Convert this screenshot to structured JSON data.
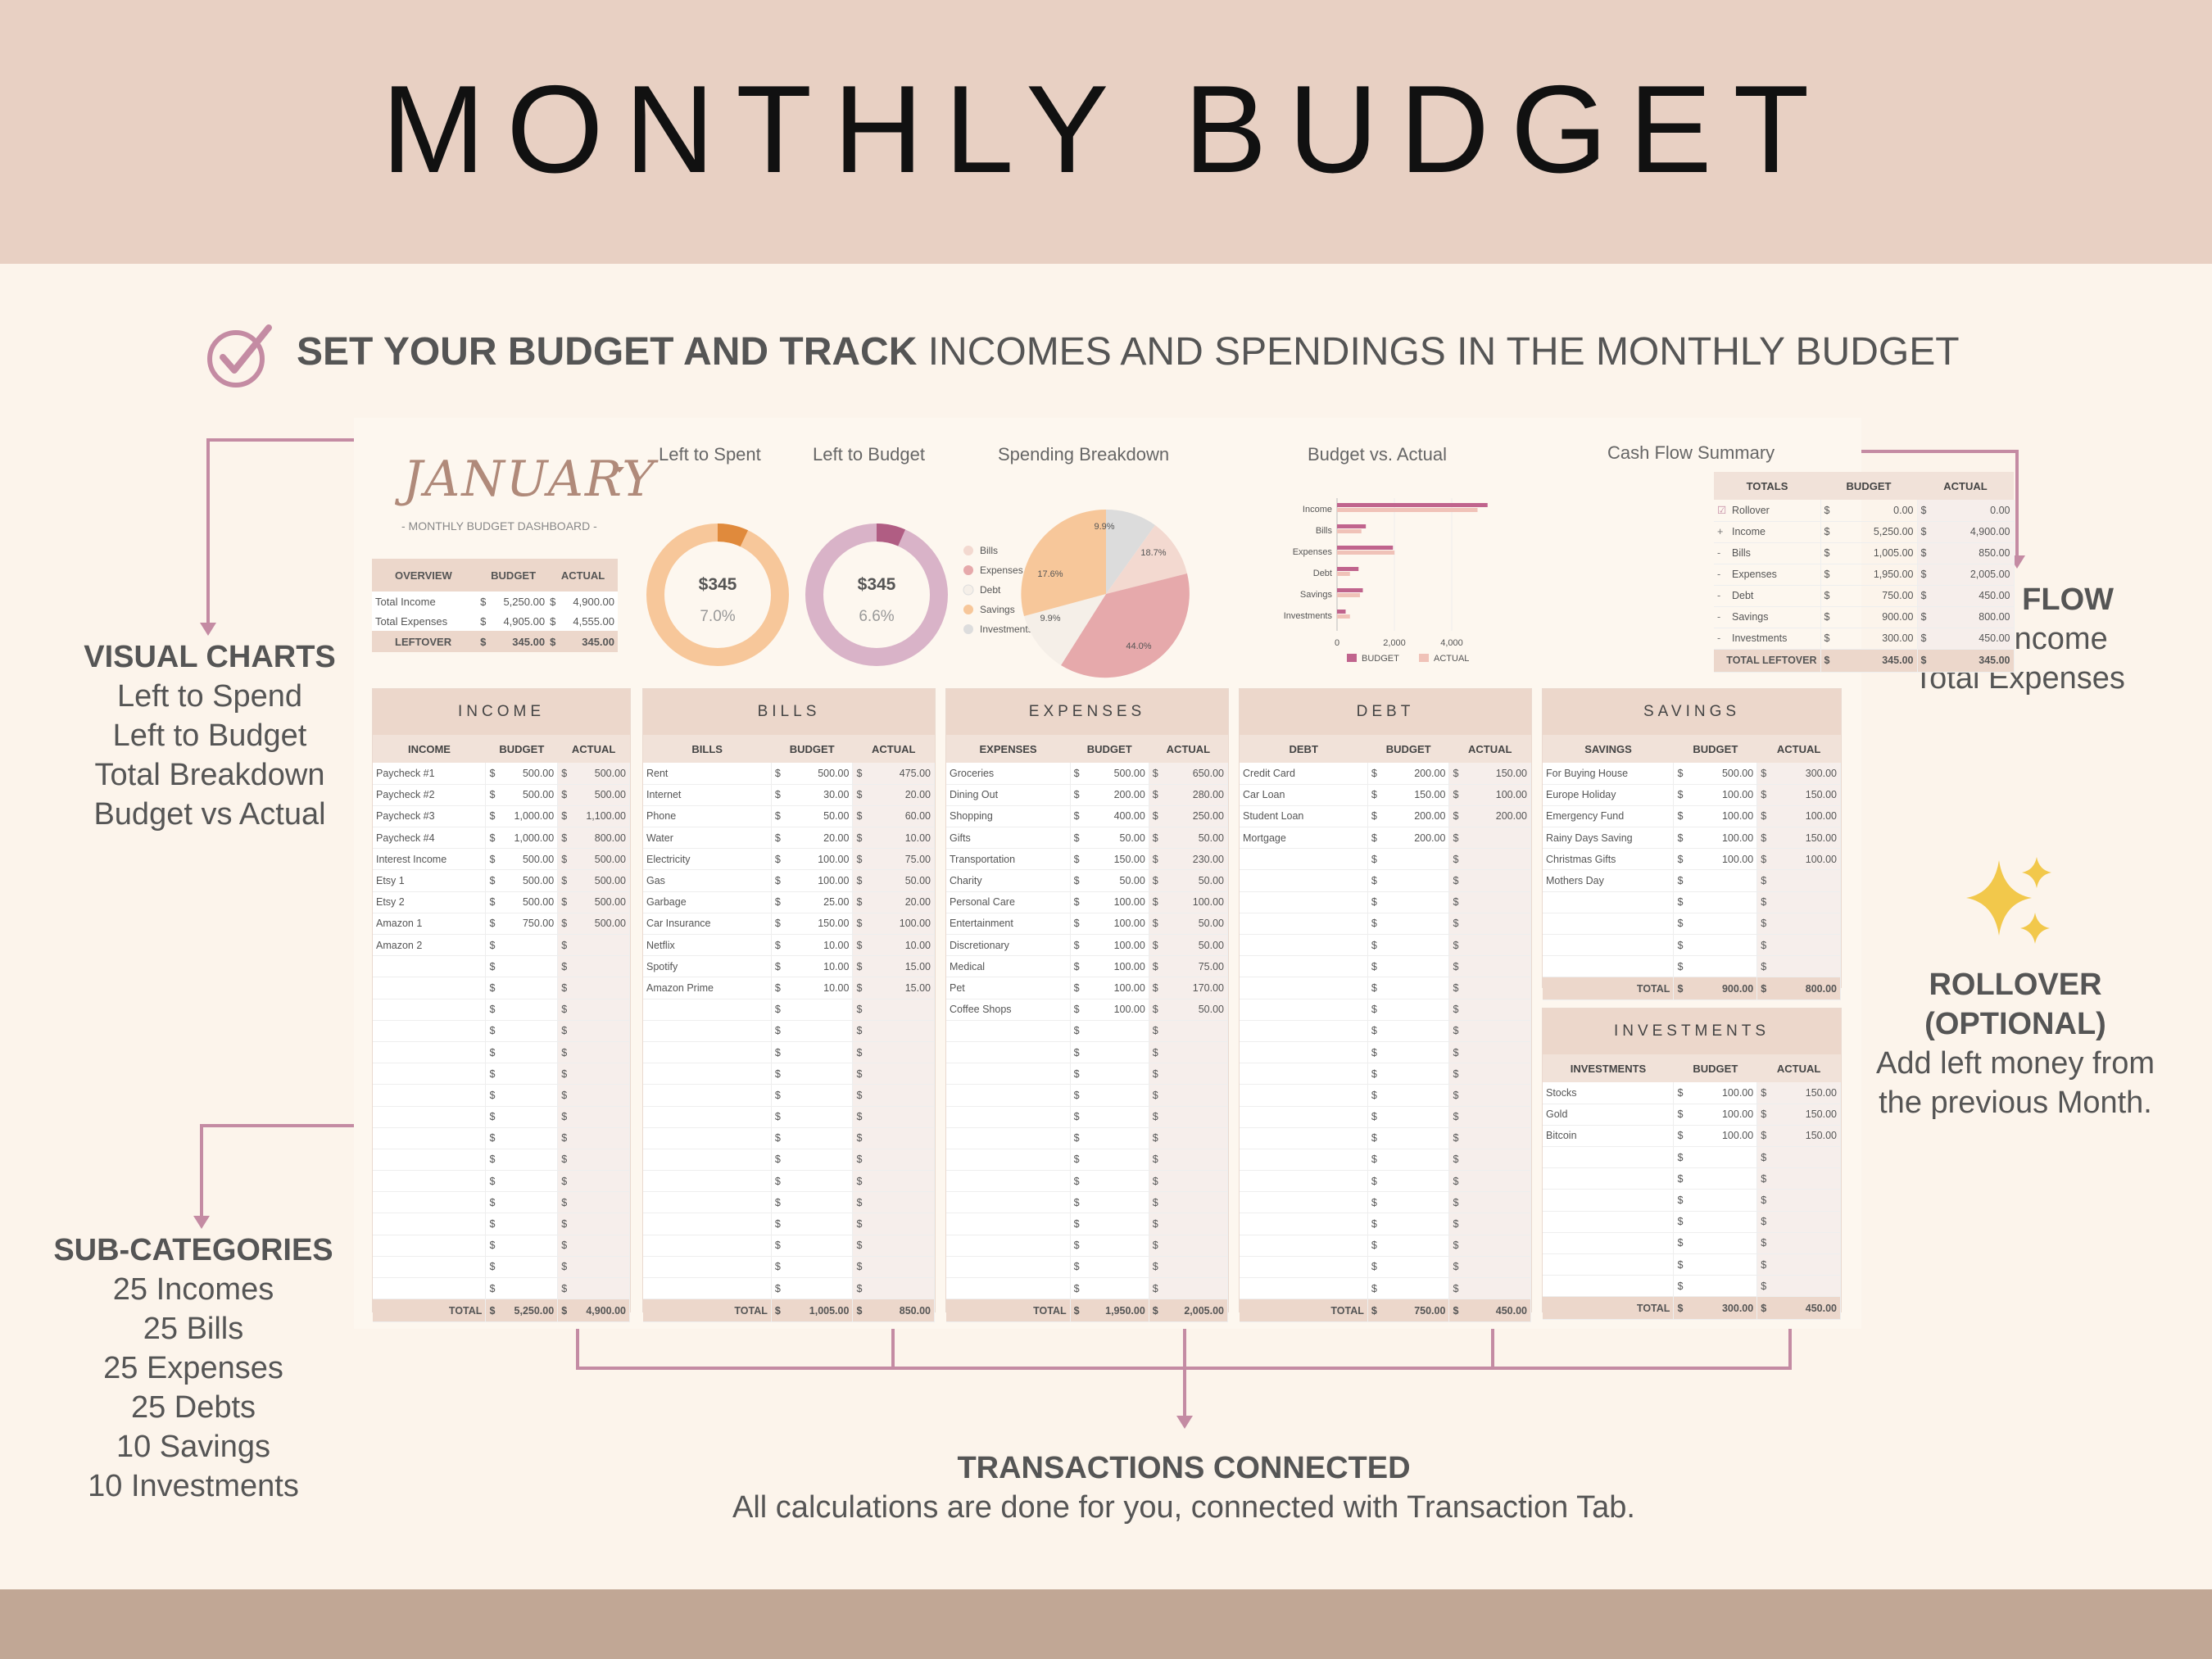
{
  "title": "MONTHLY BUDGET",
  "headline": {
    "bold": "SET YOUR BUDGET AND TRACK",
    "rest": " INCOMES AND SPENDINGS IN THE MONTHLY BUDGET"
  },
  "annotations": {
    "visual_charts": {
      "heading": "VISUAL CHARTS",
      "lines": [
        "Left to Spend",
        "Left to Budget",
        "Total Breakdown",
        "Budget vs Actual"
      ]
    },
    "cash_flow": {
      "heading": "CASH FLOW",
      "lines": [
        "Total Income",
        "Total Expenses"
      ]
    },
    "rollover": {
      "heading1": "ROLLOVER",
      "heading2": "(OPTIONAL)",
      "lines": [
        "Add left money from",
        "the previous Month."
      ]
    },
    "sub_categories": {
      "heading": "SUB-CATEGORIES",
      "lines": [
        "25 Incomes",
        "25 Bills",
        "25 Expenses",
        "25 Debts",
        "10 Savings",
        "10 Investments"
      ]
    },
    "transactions": {
      "heading": "TRANSACTIONS CONNECTED",
      "line": "All calculations are done for you, connected with Transaction Tab."
    }
  },
  "dashboard": {
    "month": "JANUARY",
    "subtitle": "- MONTHLY BUDGET DASHBOARD -",
    "overview": {
      "headers": [
        "OVERVIEW",
        "BUDGET",
        "ACTUAL"
      ],
      "rows": [
        [
          "Total Income",
          "5,250.00",
          "4,900.00"
        ],
        [
          "Total Expenses",
          "4,905.00",
          "4,555.00"
        ]
      ],
      "total": [
        "LEFTOVER",
        "345.00",
        "345.00"
      ]
    },
    "left_to_spent": {
      "title": "Left to Spent",
      "amount": "$345",
      "percent": "7.0%",
      "fraction": 0.07
    },
    "left_to_budget": {
      "title": "Left to Budget",
      "amount": "$345",
      "percent": "6.6%",
      "fraction": 0.066
    },
    "spending_breakdown": {
      "title": "Spending Breakdown",
      "legend": [
        "Bills",
        "Expenses",
        "Debt",
        "Savings",
        "Investments"
      ],
      "labels": [
        "9.9%",
        "18.7%",
        "44.0%",
        "9.9%",
        "17.6%"
      ]
    },
    "budget_vs_actual": {
      "title": "Budget vs. Actual",
      "ticks": [
        "0",
        "2,000",
        "4,000"
      ],
      "legend": [
        "BUDGET",
        "ACTUAL"
      ]
    },
    "cash_flow": {
      "title": "Cash Flow Summary",
      "headers": [
        "TOTALS",
        "BUDGET",
        "ACTUAL"
      ],
      "rows": [
        [
          "☑",
          "Rollover",
          "0.00",
          "0.00"
        ],
        [
          "+",
          "Income",
          "5,250.00",
          "4,900.00"
        ],
        [
          "-",
          "Bills",
          "1,005.00",
          "850.00"
        ],
        [
          "-",
          "Expenses",
          "1,950.00",
          "2,005.00"
        ],
        [
          "-",
          "Debt",
          "750.00",
          "450.00"
        ],
        [
          "-",
          "Savings",
          "900.00",
          "800.00"
        ],
        [
          "-",
          "Investments",
          "300.00",
          "450.00"
        ]
      ],
      "total": [
        "TOTAL LEFTOVER",
        "345.00",
        "345.00"
      ]
    },
    "panels": [
      {
        "title": "INCOME",
        "col": "INCOME",
        "rows": [
          [
            "Paycheck #1",
            "500.00",
            "500.00"
          ],
          [
            "Paycheck #2",
            "500.00",
            "500.00"
          ],
          [
            "Paycheck #3",
            "1,000.00",
            "1,100.00"
          ],
          [
            "Paycheck #4",
            "1,000.00",
            "800.00"
          ],
          [
            "Interest Income",
            "500.00",
            "500.00"
          ],
          [
            "Etsy 1",
            "500.00",
            "500.00"
          ],
          [
            "Etsy 2",
            "500.00",
            "500.00"
          ],
          [
            "Amazon 1",
            "750.00",
            "500.00"
          ],
          [
            "Amazon 2",
            "",
            ""
          ]
        ],
        "total": [
          "5,250.00",
          "4,900.00"
        ]
      },
      {
        "title": "BILLS",
        "col": "BILLS",
        "rows": [
          [
            "Rent",
            "500.00",
            "475.00"
          ],
          [
            "Internet",
            "30.00",
            "20.00"
          ],
          [
            "Phone",
            "50.00",
            "60.00"
          ],
          [
            "Water",
            "20.00",
            "10.00"
          ],
          [
            "Electricity",
            "100.00",
            "75.00"
          ],
          [
            "Gas",
            "100.00",
            "50.00"
          ],
          [
            "Garbage",
            "25.00",
            "20.00"
          ],
          [
            "Car Insurance",
            "150.00",
            "100.00"
          ],
          [
            "Netflix",
            "10.00",
            "10.00"
          ],
          [
            "Spotify",
            "10.00",
            "15.00"
          ],
          [
            "Amazon Prime",
            "10.00",
            "15.00"
          ]
        ],
        "total": [
          "1,005.00",
          "850.00"
        ]
      },
      {
        "title": "EXPENSES",
        "col": "EXPENSES",
        "rows": [
          [
            "Groceries",
            "500.00",
            "650.00"
          ],
          [
            "Dining Out",
            "200.00",
            "280.00"
          ],
          [
            "Shopping",
            "400.00",
            "250.00"
          ],
          [
            "Gifts",
            "50.00",
            "50.00"
          ],
          [
            "Transportation",
            "150.00",
            "230.00"
          ],
          [
            "Charity",
            "50.00",
            "50.00"
          ],
          [
            "Personal Care",
            "100.00",
            "100.00"
          ],
          [
            "Entertainment",
            "100.00",
            "50.00"
          ],
          [
            "Discretionary",
            "100.00",
            "50.00"
          ],
          [
            "Medical",
            "100.00",
            "75.00"
          ],
          [
            "Pet",
            "100.00",
            "170.00"
          ],
          [
            "Coffee Shops",
            "100.00",
            "50.00"
          ]
        ],
        "total": [
          "1,950.00",
          "2,005.00"
        ]
      },
      {
        "title": "DEBT",
        "col": "DEBT",
        "rows": [
          [
            "Credit Card",
            "200.00",
            "150.00"
          ],
          [
            "Car Loan",
            "150.00",
            "100.00"
          ],
          [
            "Student Loan",
            "200.00",
            "200.00"
          ],
          [
            "Mortgage",
            "200.00",
            ""
          ]
        ],
        "total": [
          "750.00",
          "450.00"
        ]
      },
      {
        "title": "SAVINGS",
        "col": "SAVINGS",
        "rows": [
          [
            "For Buying House",
            "500.00",
            "300.00"
          ],
          [
            "Europe Holiday",
            "100.00",
            "150.00"
          ],
          [
            "Emergency Fund",
            "100.00",
            "100.00"
          ],
          [
            "Rainy Days Saving",
            "100.00",
            "150.00"
          ],
          [
            "Christmas Gifts",
            "100.00",
            "100.00"
          ],
          [
            "Mothers Day",
            "",
            ""
          ]
        ],
        "total": [
          "900.00",
          "800.00"
        ]
      },
      {
        "title": "INVESTMENTS",
        "col": "INVESTMENTS",
        "rows": [
          [
            "Stocks",
            "100.00",
            "150.00"
          ],
          [
            "Gold",
            "100.00",
            "150.00"
          ],
          [
            "Bitcoin",
            "100.00",
            "150.00"
          ]
        ],
        "total": [
          "300.00",
          "450.00"
        ]
      }
    ],
    "col_budget": "BUDGET",
    "col_actual": "ACTUAL",
    "total_label": "TOTAL",
    "currency": "$"
  },
  "colors": {
    "accent": "#c48ba3",
    "header": "#ecd7cb",
    "orange": "#f7c79a",
    "orange_dark": "#e08a3c",
    "mauve": "#d9b3c8",
    "mauve_dark": "#b05d83",
    "pink": "#e6a9ab"
  }
}
